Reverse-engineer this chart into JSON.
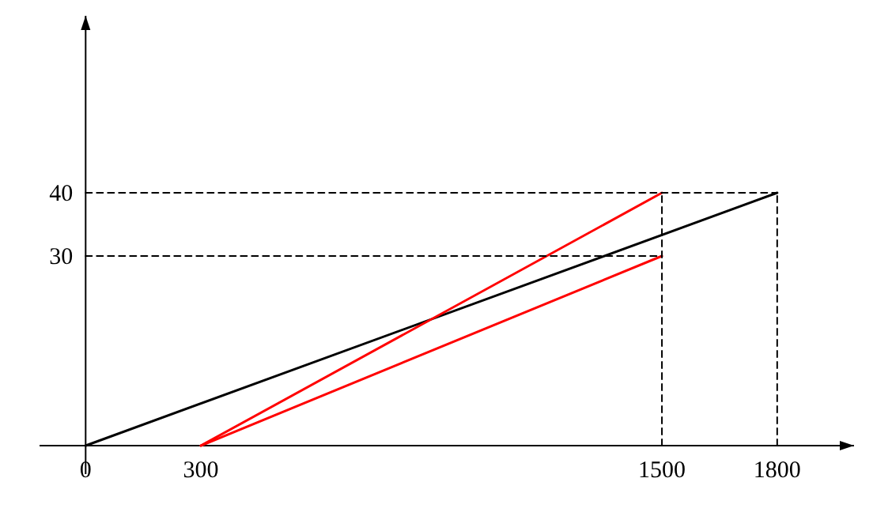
{
  "chart_data": {
    "type": "line",
    "xlim": [
      -120,
      2000
    ],
    "ylim": [
      0,
      68
    ],
    "xticks": [
      0,
      300,
      1500,
      1800
    ],
    "yticks": [
      30,
      40
    ],
    "grid": false,
    "marker": "none",
    "series": [
      {
        "color": "#000000",
        "x": [
          0,
          1800
        ],
        "values": [
          0,
          40
        ]
      },
      {
        "color": "#ff0000",
        "x": [
          300,
          1500
        ],
        "values": [
          0,
          40
        ]
      },
      {
        "color": "#ff0000",
        "x": [
          300,
          1500
        ],
        "values": [
          0,
          30
        ]
      },
      {
        "color": "#000000",
        "x": [
          0,
          1800
        ],
        "values": [
          40,
          40
        ],
        "line_style": "dashed"
      },
      {
        "color": "#000000",
        "x": [
          0,
          1500
        ],
        "values": [
          30,
          30
        ],
        "line_style": "dashed"
      },
      {
        "color": "#000000",
        "x": [
          1500,
          1500
        ],
        "values": [
          0,
          40
        ],
        "line_style": "dashed"
      },
      {
        "color": "#000000",
        "x": [
          1800,
          1800
        ],
        "values": [
          0,
          40
        ],
        "line_style": "dashed"
      }
    ]
  }
}
